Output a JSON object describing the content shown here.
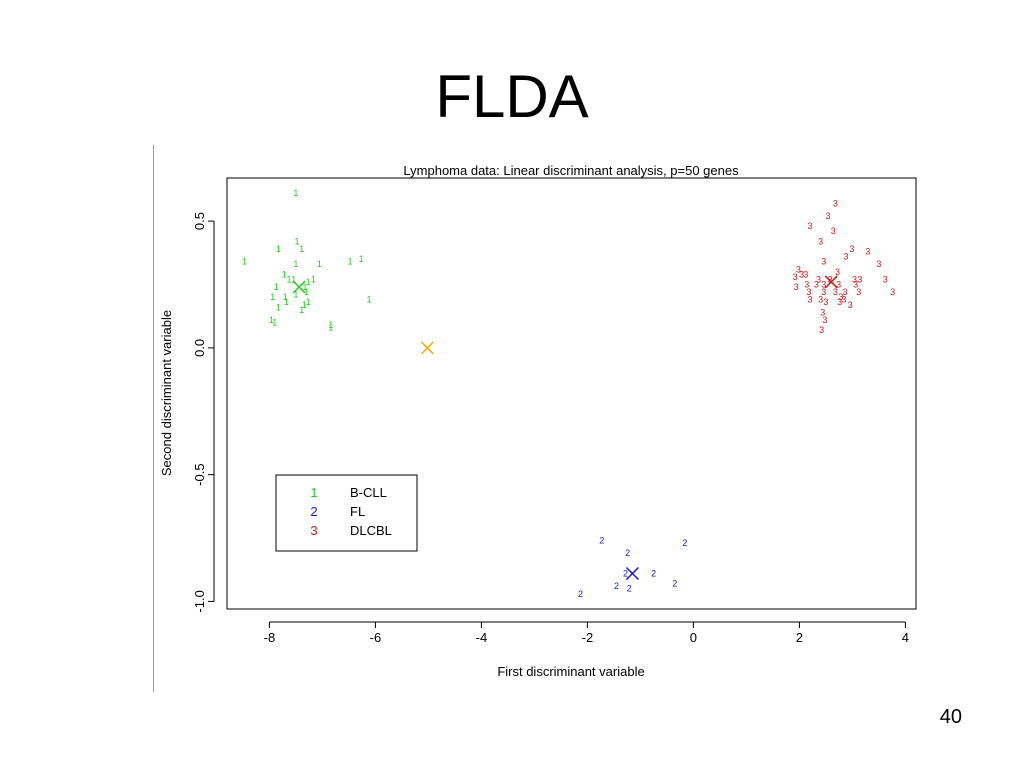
{
  "slide": {
    "title": "FLDA",
    "page_number": "40"
  },
  "chart_data": {
    "type": "scatter",
    "title": "Lymphoma data: Linear discriminant analysis, p=50 genes",
    "xlabel": "First discriminant variable",
    "ylabel": "Second discriminant variable",
    "xlim": [
      -8.8,
      4.2
    ],
    "ylim": [
      -1.03,
      0.67
    ],
    "x_ticks": [
      -8,
      -6,
      -4,
      -2,
      0,
      2,
      4
    ],
    "x_tick_labels": [
      "-8",
      "-6",
      "-4",
      "-2",
      "0",
      "2",
      "4"
    ],
    "y_ticks": [
      -1.0,
      -0.5,
      0.0,
      0.5
    ],
    "y_tick_labels": [
      "-1.0",
      "-0.5",
      "0.0",
      "0.5"
    ],
    "grid": false,
    "legend": {
      "position": "bottom-left",
      "entries": [
        {
          "symbol": "1",
          "label": "B-CLL",
          "color": "#22cc22"
        },
        {
          "symbol": "2",
          "label": "FL",
          "color": "#1a1acc"
        },
        {
          "symbol": "3",
          "label": "DLCBL",
          "color": "#cc1a1a"
        }
      ]
    },
    "series": [
      {
        "name": "B-CLL",
        "symbol": "1",
        "color": "#22cc22",
        "points": [
          [
            -7.5,
            0.61
          ],
          [
            -7.83,
            0.39
          ],
          [
            -7.48,
            0.42
          ],
          [
            -7.39,
            0.39
          ],
          [
            -8.47,
            0.34
          ],
          [
            -7.5,
            0.33
          ],
          [
            -7.72,
            0.29
          ],
          [
            -6.48,
            0.34
          ],
          [
            -6.27,
            0.35
          ],
          [
            -7.06,
            0.33
          ],
          [
            -7.17,
            0.27
          ],
          [
            -7.27,
            0.26
          ],
          [
            -7.54,
            0.27
          ],
          [
            -7.63,
            0.27
          ],
          [
            -7.87,
            0.24
          ],
          [
            -7.33,
            0.24
          ],
          [
            -7.5,
            0.21
          ],
          [
            -7.27,
            0.18
          ],
          [
            -7.68,
            0.18
          ],
          [
            -7.94,
            0.2
          ],
          [
            -7.7,
            0.2
          ],
          [
            -7.34,
            0.17
          ],
          [
            -6.12,
            0.19
          ],
          [
            -7.83,
            0.16
          ],
          [
            -7.39,
            0.15
          ],
          [
            -7.96,
            0.11
          ],
          [
            -7.9,
            0.1
          ],
          [
            -6.84,
            0.08
          ],
          [
            -6.84,
            0.09
          ],
          [
            -7.3,
            0.22
          ]
        ],
        "centroid": [
          -7.44,
          0.24
        ]
      },
      {
        "name": "FL",
        "symbol": "2",
        "color": "#1a1acc",
        "points": [
          [
            -1.73,
            -0.76
          ],
          [
            -0.16,
            -0.77
          ],
          [
            -1.24,
            -0.81
          ],
          [
            -1.28,
            -0.89
          ],
          [
            -0.75,
            -0.89
          ],
          [
            -0.35,
            -0.93
          ],
          [
            -1.45,
            -0.94
          ],
          [
            -1.21,
            -0.95
          ],
          [
            -2.13,
            -0.97
          ]
        ],
        "centroid": [
          -1.15,
          -0.89
        ]
      },
      {
        "name": "DLCBL",
        "symbol": "3",
        "color": "#cc1a1a",
        "points": [
          [
            2.68,
            0.57
          ],
          [
            2.54,
            0.52
          ],
          [
            2.2,
            0.48
          ],
          [
            2.64,
            0.46
          ],
          [
            2.4,
            0.42
          ],
          [
            2.99,
            0.39
          ],
          [
            3.29,
            0.38
          ],
          [
            2.88,
            0.36
          ],
          [
            2.46,
            0.34
          ],
          [
            3.5,
            0.33
          ],
          [
            1.98,
            0.31
          ],
          [
            2.12,
            0.29
          ],
          [
            2.72,
            0.3
          ],
          [
            1.92,
            0.28
          ],
          [
            2.04,
            0.29
          ],
          [
            2.36,
            0.27
          ],
          [
            2.58,
            0.27
          ],
          [
            3.04,
            0.27
          ],
          [
            3.14,
            0.27
          ],
          [
            3.62,
            0.27
          ],
          [
            1.94,
            0.24
          ],
          [
            2.14,
            0.25
          ],
          [
            2.32,
            0.25
          ],
          [
            2.46,
            0.25
          ],
          [
            2.74,
            0.25
          ],
          [
            3.06,
            0.25
          ],
          [
            2.18,
            0.22
          ],
          [
            2.46,
            0.22
          ],
          [
            2.68,
            0.22
          ],
          [
            2.86,
            0.22
          ],
          [
            3.12,
            0.22
          ],
          [
            3.76,
            0.22
          ],
          [
            2.2,
            0.19
          ],
          [
            2.4,
            0.19
          ],
          [
            2.78,
            0.2
          ],
          [
            2.84,
            0.19
          ],
          [
            2.5,
            0.18
          ],
          [
            2.76,
            0.18
          ],
          [
            2.96,
            0.17
          ],
          [
            2.44,
            0.14
          ],
          [
            2.48,
            0.11
          ],
          [
            2.42,
            0.07
          ]
        ],
        "centroid": [
          2.6,
          0.26
        ]
      }
    ],
    "overall_centroid": {
      "point": [
        -5.02,
        0.0
      ],
      "color": "#f2a900"
    }
  }
}
